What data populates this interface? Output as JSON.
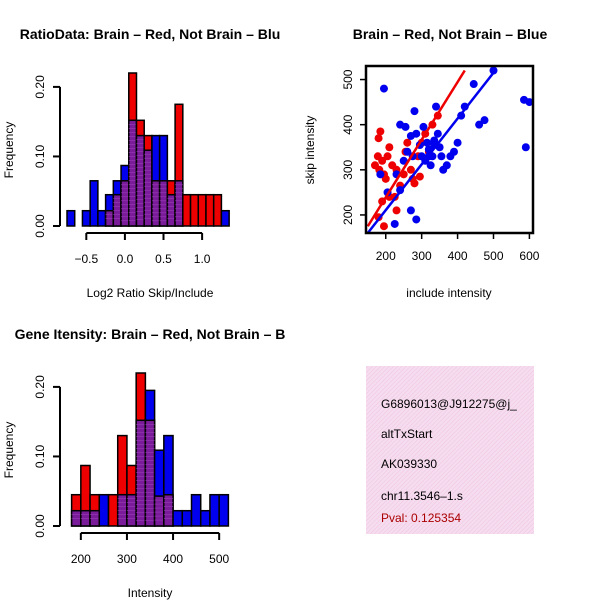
{
  "colors": {
    "red": "#ee0000",
    "blue": "#0000ee",
    "overlap": "#7a1c9a",
    "info_bg": "#f3d8ec",
    "pval": "#aa0000"
  },
  "chart_data": [
    {
      "id": "ratio-hist",
      "type": "bar",
      "title": "RatioData: Brain – Red, Not Brain – Blu",
      "xlabel": "Log2 Ratio Skip/Include",
      "ylabel": "Frequency",
      "xlim": [
        -0.75,
        1.4
      ],
      "ylim": [
        0,
        0.22
      ],
      "xticks": [
        -0.5,
        0.0,
        0.5,
        1.0
      ],
      "xtick_labels": [
        "−0.5",
        "0.0",
        "0.5",
        "1.0"
      ],
      "yticks": [
        0.0,
        0.1,
        0.2
      ],
      "ytick_labels": [
        "0.00",
        "0.10",
        "0.20"
      ],
      "bin_width": 0.1,
      "bin_start": -0.75,
      "series": [
        {
          "name": "Brain",
          "color": "red",
          "values": [
            0,
            0,
            0,
            0,
            0,
            0.022,
            0.045,
            0.065,
            0.22,
            0.152,
            0.13,
            0.065,
            0.065,
            0.065,
            0.175,
            0.045,
            0.045,
            0.045,
            0.045,
            0.045,
            0
          ]
        },
        {
          "name": "Not Brain",
          "color": "blue",
          "values": [
            0.022,
            0,
            0.022,
            0.065,
            0.022,
            0.045,
            0.065,
            0.087,
            0.152,
            0.13,
            0.109,
            0.13,
            0.13,
            0.045,
            0.065,
            0,
            0,
            0,
            0,
            0,
            0.022
          ]
        }
      ]
    },
    {
      "id": "scatter",
      "type": "scatter",
      "title": "Brain – Red, Not Brain – Blue",
      "xlabel": "include intensity",
      "ylabel": "skip intensity",
      "xlim": [
        145,
        610
      ],
      "ylim": [
        160,
        530
      ],
      "xticks": [
        200,
        300,
        400,
        500,
        600
      ],
      "xtick_labels": [
        "200",
        "300",
        "400",
        "500",
        "600"
      ],
      "yticks": [
        200,
        300,
        400,
        500
      ],
      "ytick_labels": [
        "200",
        "300",
        "400",
        "500"
      ],
      "series": [
        {
          "name": "Brain",
          "color": "red",
          "points": [
            [
              170,
              310
            ],
            [
              178,
              330
            ],
            [
              180,
              370
            ],
            [
              185,
              385
            ],
            [
              182,
              300
            ],
            [
              190,
              320
            ],
            [
              195,
              290
            ],
            [
              200,
              280
            ],
            [
              205,
              330
            ],
            [
              210,
              350
            ],
            [
              218,
              310
            ],
            [
              225,
              240
            ],
            [
              190,
              230
            ],
            [
              195,
              175
            ],
            [
              230,
              210
            ],
            [
              240,
              265
            ],
            [
              250,
              290
            ],
            [
              255,
              340
            ],
            [
              260,
              360
            ],
            [
              270,
              300
            ],
            [
              275,
              280
            ],
            [
              280,
              270
            ],
            [
              290,
              330
            ],
            [
              300,
              360
            ],
            [
              310,
              380
            ],
            [
              320,
              340
            ],
            [
              330,
              400
            ],
            [
              345,
              420
            ],
            [
              295,
              285
            ],
            [
              230,
              300
            ],
            [
              210,
              240
            ],
            [
              180,
              195
            ]
          ],
          "fit": [
            [
              150,
              175
            ],
            [
              420,
              520
            ]
          ]
        },
        {
          "name": "Not Brain",
          "color": "blue",
          "points": [
            [
              195,
              480
            ],
            [
              185,
              290
            ],
            [
              205,
              250
            ],
            [
              225,
              180
            ],
            [
              240,
              400
            ],
            [
              255,
              395
            ],
            [
              260,
              340
            ],
            [
              270,
              375
            ],
            [
              275,
              330
            ],
            [
              280,
              430
            ],
            [
              285,
              380
            ],
            [
              295,
              355
            ],
            [
              300,
              330
            ],
            [
              305,
              395
            ],
            [
              310,
              320
            ],
            [
              315,
              360
            ],
            [
              320,
              345
            ],
            [
              325,
              310
            ],
            [
              330,
              330
            ],
            [
              335,
              365
            ],
            [
              340,
              440
            ],
            [
              345,
              380
            ],
            [
              350,
              350
            ],
            [
              355,
              330
            ],
            [
              360,
              300
            ],
            [
              370,
              310
            ],
            [
              380,
              330
            ],
            [
              390,
              340
            ],
            [
              400,
              360
            ],
            [
              410,
              420
            ],
            [
              420,
              440
            ],
            [
              445,
              490
            ],
            [
              460,
              400
            ],
            [
              475,
              410
            ],
            [
              500,
              520
            ],
            [
              270,
              210
            ],
            [
              285,
              190
            ],
            [
              240,
              255
            ],
            [
              230,
              290
            ],
            [
              250,
              320
            ],
            [
              585,
              455
            ],
            [
              600,
              450
            ],
            [
              590,
              350
            ],
            [
              320,
              330
            ],
            [
              335,
              355
            ]
          ],
          "fit": [
            [
              150,
              160
            ],
            [
              500,
              515
            ]
          ]
        }
      ]
    },
    {
      "id": "intensity-hist",
      "type": "bar",
      "title": "Gene Itensity: Brain – Red, Not Brain – B",
      "xlabel": "Intensity",
      "ylabel": "Frequency",
      "xlim": [
        170,
        530
      ],
      "ylim": [
        0,
        0.22
      ],
      "xticks": [
        200,
        300,
        400,
        500
      ],
      "xtick_labels": [
        "200",
        "300",
        "400",
        "500"
      ],
      "yticks": [
        0.0,
        0.1,
        0.2
      ],
      "ytick_labels": [
        "0.00",
        "0.10",
        "0.20"
      ],
      "bin_width": 20,
      "bin_start": 180,
      "series": [
        {
          "name": "Brain",
          "color": "red",
          "values": [
            0.045,
            0.087,
            0.045,
            0,
            0.045,
            0.13,
            0.087,
            0.22,
            0.152,
            0.043,
            0.045,
            0,
            0,
            0,
            0,
            0,
            0
          ]
        },
        {
          "name": "Not Brain",
          "color": "blue",
          "values": [
            0.022,
            0.022,
            0.022,
            0.045,
            0,
            0.045,
            0.045,
            0.152,
            0.195,
            0.109,
            0.13,
            0.022,
            0.022,
            0.045,
            0.022,
            0.045,
            0.045
          ]
        }
      ]
    }
  ],
  "info_panel": {
    "gene_id": "G6896013@J912275@j_",
    "event_type": "altTxStart",
    "accession": "AK039330",
    "cluster": "chr11.3546–1.s",
    "pval": "Pval: 0.125354"
  }
}
